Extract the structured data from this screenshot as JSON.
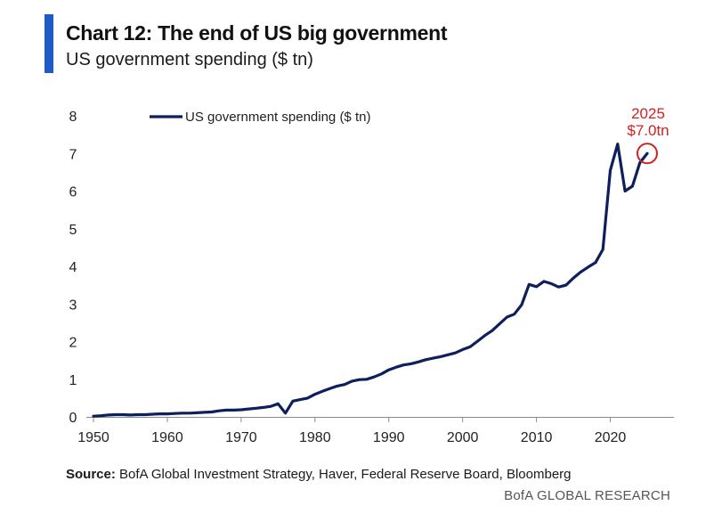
{
  "header": {
    "title": "Chart 12: The end of US big government",
    "subtitle": "US government spending ($ tn)"
  },
  "chart_data": {
    "type": "line",
    "title": "Chart 12: The end of US big government",
    "subtitle": "US government spending ($ tn)",
    "xlabel": "",
    "ylabel": "",
    "xlim": [
      1950,
      2025
    ],
    "ylim": [
      0,
      8
    ],
    "x_ticks": [
      1950,
      1960,
      1970,
      1980,
      1990,
      2000,
      2010,
      2020
    ],
    "y_ticks": [
      0,
      1,
      2,
      3,
      4,
      5,
      6,
      7,
      8
    ],
    "grid": false,
    "legend_position": "top-left",
    "series": [
      {
        "name": "US government spending ($ tn)",
        "color": "#0d1f5c",
        "x": [
          1950,
          1951,
          1952,
          1953,
          1954,
          1955,
          1956,
          1957,
          1958,
          1959,
          1960,
          1961,
          1962,
          1963,
          1964,
          1965,
          1966,
          1967,
          1968,
          1969,
          1970,
          1971,
          1972,
          1973,
          1974,
          1975,
          1976,
          1977,
          1978,
          1979,
          1980,
          1981,
          1982,
          1983,
          1984,
          1985,
          1986,
          1987,
          1988,
          1989,
          1990,
          1991,
          1992,
          1993,
          1994,
          1995,
          1996,
          1997,
          1998,
          1999,
          2000,
          2001,
          2002,
          2003,
          2004,
          2005,
          2006,
          2007,
          2008,
          2009,
          2010,
          2011,
          2012,
          2013,
          2014,
          2015,
          2016,
          2017,
          2018,
          2019,
          2020,
          2021,
          2022,
          2023,
          2024,
          2025
        ],
        "values": [
          0.02,
          0.03,
          0.05,
          0.06,
          0.06,
          0.05,
          0.06,
          0.06,
          0.07,
          0.08,
          0.08,
          0.09,
          0.1,
          0.1,
          0.11,
          0.12,
          0.13,
          0.16,
          0.18,
          0.18,
          0.19,
          0.21,
          0.23,
          0.25,
          0.28,
          0.35,
          0.1,
          0.42,
          0.46,
          0.5,
          0.6,
          0.68,
          0.75,
          0.82,
          0.86,
          0.95,
          0.99,
          1.0,
          1.06,
          1.14,
          1.25,
          1.32,
          1.38,
          1.41,
          1.46,
          1.52,
          1.56,
          1.6,
          1.65,
          1.7,
          1.79,
          1.86,
          2.01,
          2.16,
          2.29,
          2.47,
          2.65,
          2.73,
          2.98,
          3.52,
          3.46,
          3.6,
          3.54,
          3.45,
          3.5,
          3.69,
          3.85,
          3.98,
          4.1,
          4.45,
          6.55,
          7.25,
          6.0,
          6.13,
          6.75,
          7.0
        ]
      }
    ],
    "annotations": [
      {
        "year_label": "2025",
        "value_label": "$7.0tn",
        "x": 2025,
        "y": 7.0,
        "color": "#d42020"
      }
    ]
  },
  "footer": {
    "source_label": "Source:",
    "source_text": "BofA Global Investment Strategy, Haver, Federal Reserve Board, Bloomberg",
    "brand": "BofA GLOBAL RESEARCH"
  },
  "colors": {
    "accent": "#1f5bc6",
    "line": "#0d1f5c",
    "highlight": "#d42020"
  }
}
